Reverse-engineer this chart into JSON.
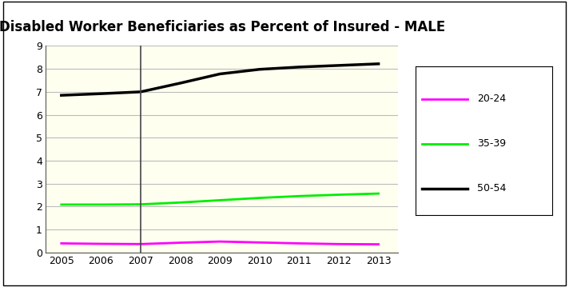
{
  "title": "Disabled Worker Beneficiaries as Percent of Insured - MALE",
  "years": [
    2005,
    2006,
    2007,
    2008,
    2009,
    2010,
    2011,
    2012,
    2013
  ],
  "series_order": [
    "20-24",
    "35-39",
    "50-54"
  ],
  "series": {
    "20-24": {
      "values": [
        0.4,
        0.38,
        0.37,
        0.43,
        0.48,
        0.44,
        0.4,
        0.37,
        0.36
      ],
      "color": "#FF00FF",
      "linewidth": 2.0
    },
    "35-39": {
      "values": [
        2.09,
        2.09,
        2.1,
        2.18,
        2.28,
        2.38,
        2.46,
        2.52,
        2.57
      ],
      "color": "#00EE00",
      "linewidth": 2.0
    },
    "50-54": {
      "values": [
        6.85,
        6.92,
        7.0,
        7.38,
        7.78,
        7.98,
        8.08,
        8.15,
        8.22
      ],
      "color": "#000000",
      "linewidth": 2.5
    }
  },
  "vline_x": 2007,
  "vline_color": "#444444",
  "vline_linewidth": 1.2,
  "ylim": [
    0,
    9
  ],
  "yticks": [
    0,
    1,
    2,
    3,
    4,
    5,
    6,
    7,
    8,
    9
  ],
  "xlim": [
    2004.6,
    2013.5
  ],
  "xticks": [
    2005,
    2006,
    2007,
    2008,
    2009,
    2010,
    2011,
    2012,
    2013
  ],
  "plot_bg_color": "#FFFFF0",
  "fig_bg_color": "#FFFFFF",
  "grid_color": "#BBBBBB",
  "grid_linewidth": 0.8,
  "title_fontsize": 12,
  "tick_fontsize": 9,
  "legend_fontsize": 9
}
